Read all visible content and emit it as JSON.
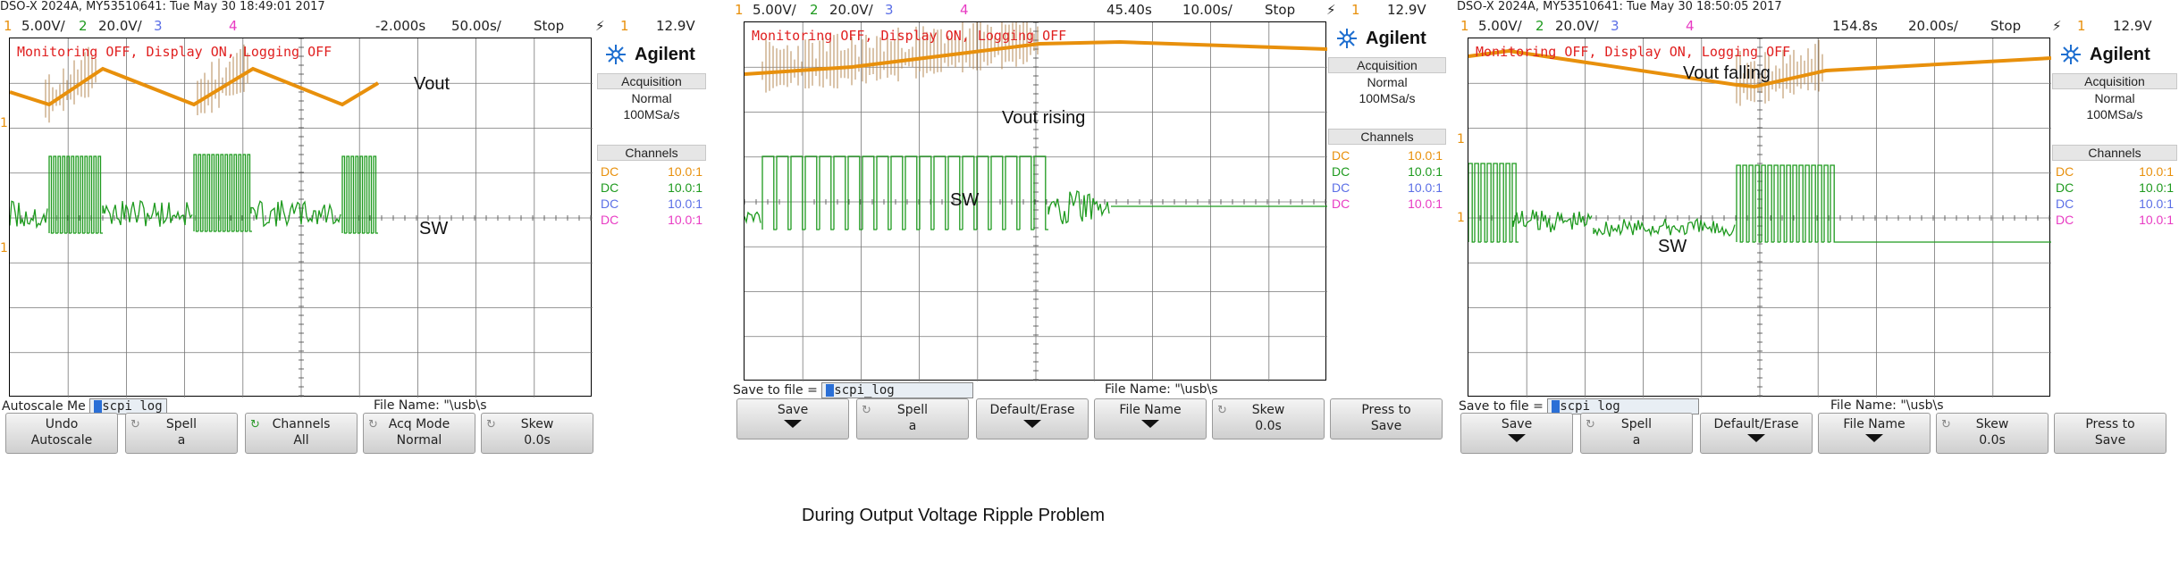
{
  "colors": {
    "ch1": "#e8900c",
    "ch2": "#1e9a1e",
    "ch3": "#5b6fe6",
    "ch4": "#e83bc3",
    "grid": "#000000",
    "monitor": "#e02020"
  },
  "caption": "During Output Voltage Ripple Problem",
  "scopes": [
    {
      "header": "DSO-X 2024A, MY53510641: Tue May 30 18:49:01 2017",
      "ch1": "5.00V/",
      "ch2": "20.0V/",
      "ch3_num": "3",
      "ch4_num": "4",
      "ch1_num": "1",
      "ch2_num": "2",
      "delay": "-2.000s",
      "timebase": "50.00s/",
      "run_state": "Stop",
      "trig_num": "1",
      "trig_level": "12.9V",
      "monitor": "Monitoring OFF, Display ON, Logging OFF",
      "labels": {
        "vout": "Vout",
        "sw": "SW"
      },
      "brand": "Agilent",
      "acq_title": "Acquisition",
      "acq_mode": "Normal",
      "acq_rate": "100MSa/s",
      "channels_title": "Channels",
      "channels": [
        {
          "coupling": "DC",
          "probe": "10.0:1"
        },
        {
          "coupling": "DC",
          "probe": "10.0:1"
        },
        {
          "coupling": "DC",
          "probe": "10.0:1"
        },
        {
          "coupling": "DC",
          "probe": "10.0:1"
        }
      ],
      "soft_left": "Autoscale Me",
      "field_value": "scpi_log",
      "file_name": "File Name: \"\\usb\\s",
      "softkeys": [
        {
          "top": "Undo",
          "bottom": "Autoscale"
        },
        {
          "top": "Spell",
          "bottom": "a"
        },
        {
          "top": "Channels",
          "bottom": "All"
        },
        {
          "top": "Acq Mode",
          "bottom": "Normal"
        },
        {
          "top": "Skew",
          "bottom": "0.0s"
        }
      ]
    },
    {
      "header": "",
      "ch1": "5.00V/",
      "ch2": "20.0V/",
      "ch3_num": "3",
      "ch4_num": "4",
      "ch1_num": "1",
      "ch2_num": "2",
      "delay": "45.40s",
      "timebase": "10.00s/",
      "run_state": "Stop",
      "trig_num": "1",
      "trig_level": "12.9V",
      "monitor": "Monitoring OFF, Display ON, Logging OFF",
      "labels": {
        "vout": "Vout rising",
        "sw": "SW"
      },
      "brand": "Agilent",
      "acq_title": "Acquisition",
      "acq_mode": "Normal",
      "acq_rate": "100MSa/s",
      "channels_title": "Channels",
      "channels": [
        {
          "coupling": "DC",
          "probe": "10.0:1"
        },
        {
          "coupling": "DC",
          "probe": "10.0:1"
        },
        {
          "coupling": "DC",
          "probe": "10.0:1"
        },
        {
          "coupling": "DC",
          "probe": "10.0:1"
        }
      ],
      "soft_left": "Save to file =",
      "field_value": "scpi_log",
      "file_name": "File Name: \"\\usb\\s",
      "softkeys": [
        {
          "top": "Save",
          "bottom": ""
        },
        {
          "top": "Spell",
          "bottom": "a"
        },
        {
          "top": "Default/Erase",
          "bottom": ""
        },
        {
          "top": "File Name",
          "bottom": ""
        },
        {
          "top": "Skew",
          "bottom": "0.0s"
        },
        {
          "top": "Press to",
          "bottom": "Save"
        }
      ]
    },
    {
      "header": "DSO-X 2024A, MY53510641: Tue May 30 18:50:05 2017",
      "ch1": "5.00V/",
      "ch2": "20.0V/",
      "ch3_num": "3",
      "ch4_num": "4",
      "ch1_num": "1",
      "ch2_num": "2",
      "delay": "154.8s",
      "timebase": "20.00s/",
      "run_state": "Stop",
      "trig_num": "1",
      "trig_level": "12.9V",
      "monitor": "Monitoring OFF, Display ON, Logging OFF",
      "labels": {
        "vout": "Vout falling",
        "sw": "SW"
      },
      "brand": "Agilent",
      "acq_title": "Acquisition",
      "acq_mode": "Normal",
      "acq_rate": "100MSa/s",
      "channels_title": "Channels",
      "channels": [
        {
          "coupling": "DC",
          "probe": "10.0:1"
        },
        {
          "coupling": "DC",
          "probe": "10.0:1"
        },
        {
          "coupling": "DC",
          "probe": "10.0:1"
        },
        {
          "coupling": "DC",
          "probe": "10.0:1"
        }
      ],
      "soft_left": "Save to file =",
      "field_value": "scpi_log",
      "file_name": "File Name: \"\\usb\\s",
      "softkeys": [
        {
          "top": "Save",
          "bottom": ""
        },
        {
          "top": "Spell",
          "bottom": "a"
        },
        {
          "top": "Default/Erase",
          "bottom": ""
        },
        {
          "top": "File Name",
          "bottom": ""
        },
        {
          "top": "Skew",
          "bottom": "0.0s"
        },
        {
          "top": "Press to",
          "bottom": "Save"
        }
      ]
    }
  ]
}
